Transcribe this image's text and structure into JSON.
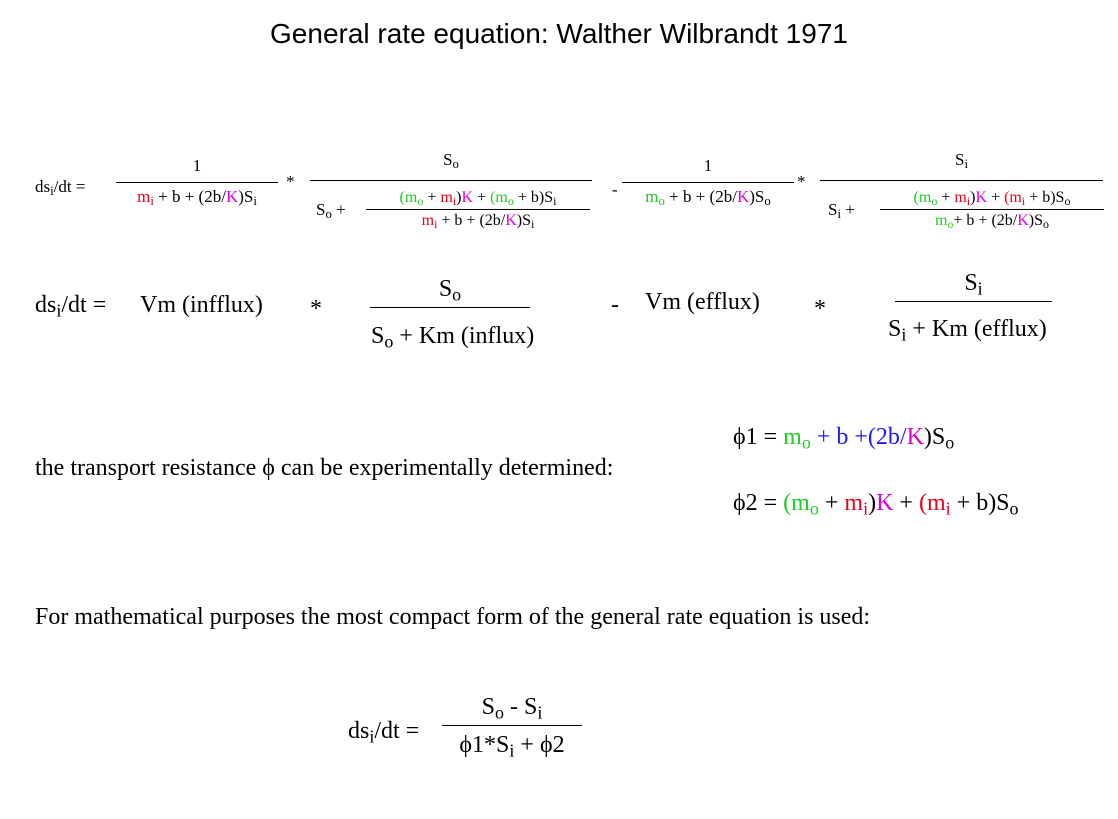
{
  "title": "General rate equation: Walther Wilbrandt 1971",
  "eq1": {
    "lhs_main": "ds",
    "lhs_sub": "i",
    "lhs_rest": "/dt =",
    "f1_num": "1",
    "f1_den_m": "m",
    "f1_den_i": "i",
    "f1_den_plus_b": " + b + (2b/",
    "K": "K",
    "f1_den_close": ")S",
    "i": "i",
    "star": "*",
    "f2_num_S": "S",
    "o": "o",
    "f2_den_S": "S",
    "f2_den_plus": " +",
    "f2_inner_num": "(m_o + m_i)K + (m_o + b)S_i",
    "minus": "-",
    "f3_num": "1",
    "f4_num_S": "S",
    "f4_den_S": "S",
    "f4_den_plus": " +",
    "plus_b_2b": " + b + (2b/",
    "close_S": ")S",
    "plus": " + ",
    "open_paren": "(",
    "close_paren": ")",
    "plus_b_close": " + b)S",
    "m": "m",
    "m_plus_b": "+ b + (2b/"
  },
  "eq2": {
    "lhs_main": "ds",
    "lhs_sub": "i",
    "lhs_rest": "/dt =",
    "vm_influx": "Vm (infflux)",
    "star": "*",
    "f1_num_S": "S",
    "o": "o",
    "f1_den_S": "S",
    "f1_den_rest": " +  Km (influx)",
    "minus": "-",
    "vm_efflux": "Vm (efflux)",
    "f2_num_S": "S",
    "i": "i",
    "f2_den_S": "S",
    "f2_den_rest": " +  Km (efflux)"
  },
  "phi": {
    "sentence": "the transport resistance ϕ can be experimentally determined:",
    "phi1_label": "ϕ1 = ",
    "phi2_label": "ϕ2 = ",
    "m": "m",
    "o": "o",
    "i": "i",
    "plus_b_2b": " + b +(2b/",
    "K": "K",
    "close_S": ")S",
    "open": "(",
    "plus": " + ",
    "close": ")",
    "plus_b_close": " + b)S",
    "S": "S"
  },
  "compact_text": "For mathematical purposes the most compact form of the general rate equation is used:",
  "eq3": {
    "lhs_main": "ds",
    "lhs_sub": "i",
    "lhs_rest": "/dt =",
    "num_S1": "S",
    "o": "o",
    "num_minus": " - S",
    "i": "i",
    "den_phi1": "ϕ1*S",
    "den_plus": " + ϕ2"
  }
}
